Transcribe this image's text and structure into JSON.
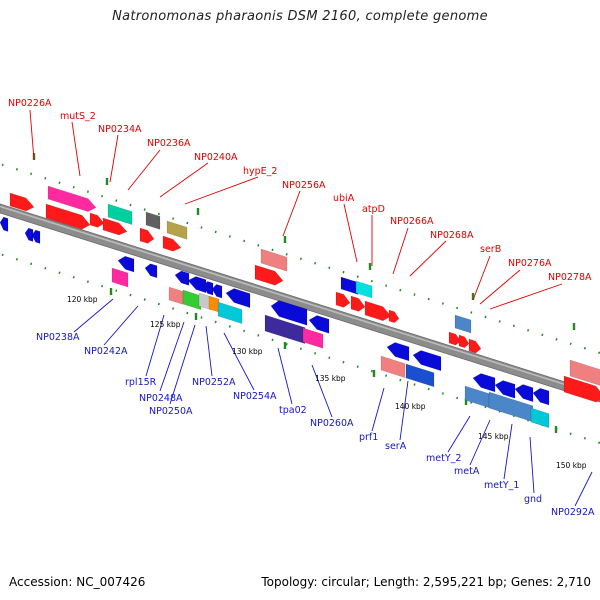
{
  "title": "Natronomonas pharaonis DSM 2160, complete genome",
  "footer": {
    "accession": "Accession: NC_007426",
    "stats": "Topology: circular; Length: 2,595,221 bp; Genes: 2,710"
  },
  "colors": {
    "backbone": "#8a8a8a",
    "top_label": "#e00000",
    "bottom_label": "#1515c8",
    "tick": "#1f8a1f"
  },
  "kbp_marks": [
    "120 kbp",
    "125 kbp",
    "130 kbp",
    "135 kbp",
    "140 kbp",
    "145 kbp",
    "150 kbp"
  ],
  "top_labels": [
    "NP0226A",
    "mutS_2",
    "NP0234A",
    "NP0236A",
    "NP0240A",
    "hypE_2",
    "NP0256A",
    "ubiA",
    "atpD",
    "NP0266A",
    "NP0268A",
    "serB",
    "NP0276A",
    "NP0278A"
  ],
  "bottom_labels": [
    "NP0238A",
    "NP0242A",
    "rpl15R",
    "NP0248A",
    "NP0250A",
    "NP0252A",
    "NP0254A",
    "tpa02",
    "NP0260A",
    "prf1",
    "serA",
    "metY_2",
    "metA",
    "metY_1",
    "gnd",
    "NP0292A"
  ]
}
